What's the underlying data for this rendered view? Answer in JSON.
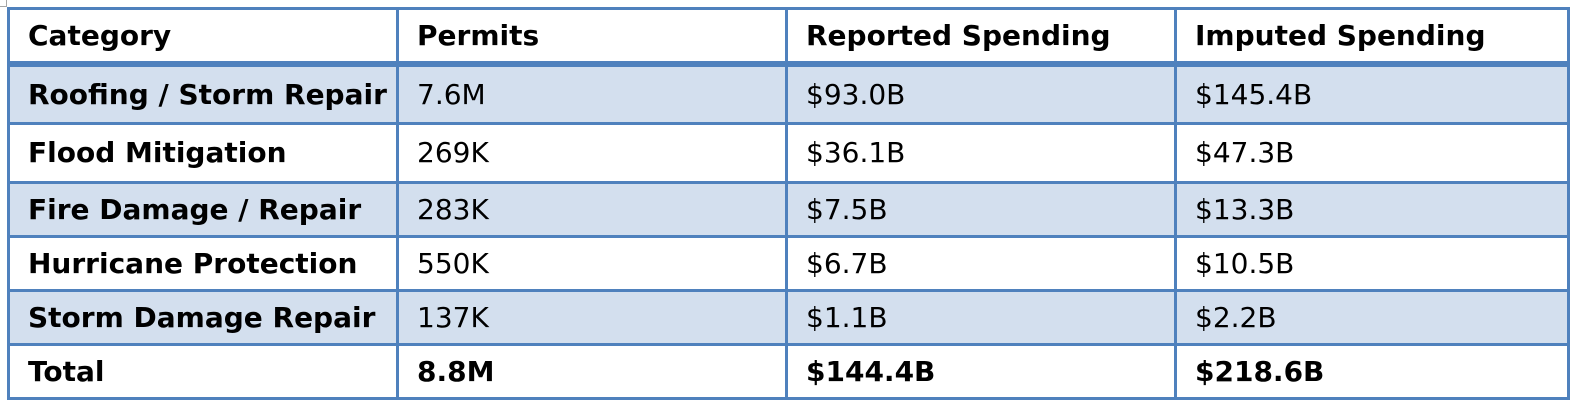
{
  "table": {
    "headers": [
      "Category",
      "Permits",
      "Reported Spending",
      "Imputed Spending"
    ],
    "rows": [
      {
        "category": "Roofing / Storm Repair",
        "permits": "7.6M",
        "reported": "$93.0B",
        "imputed": "$145.4B"
      },
      {
        "category": "Flood Mitigation",
        "permits": "269K",
        "reported": "$36.1B",
        "imputed": "$47.3B"
      },
      {
        "category": "Fire Damage / Repair",
        "permits": "283K",
        "reported": "$7.5B",
        "imputed": "$13.3B"
      },
      {
        "category": "Hurricane Protection",
        "permits": "550K",
        "reported": "$6.7B",
        "imputed": "$10.5B"
      },
      {
        "category": "Storm Damage Repair",
        "permits": "137K",
        "reported": "$1.1B",
        "imputed": "$2.2B"
      }
    ],
    "total": {
      "category": "Total",
      "permits": "8.8M",
      "reported": "$144.4B",
      "imputed": "$218.6B"
    }
  },
  "colors": {
    "border": "#4f81bd",
    "band_fill": "#d3dfee",
    "background": "#ffffff",
    "text": "#000000"
  }
}
